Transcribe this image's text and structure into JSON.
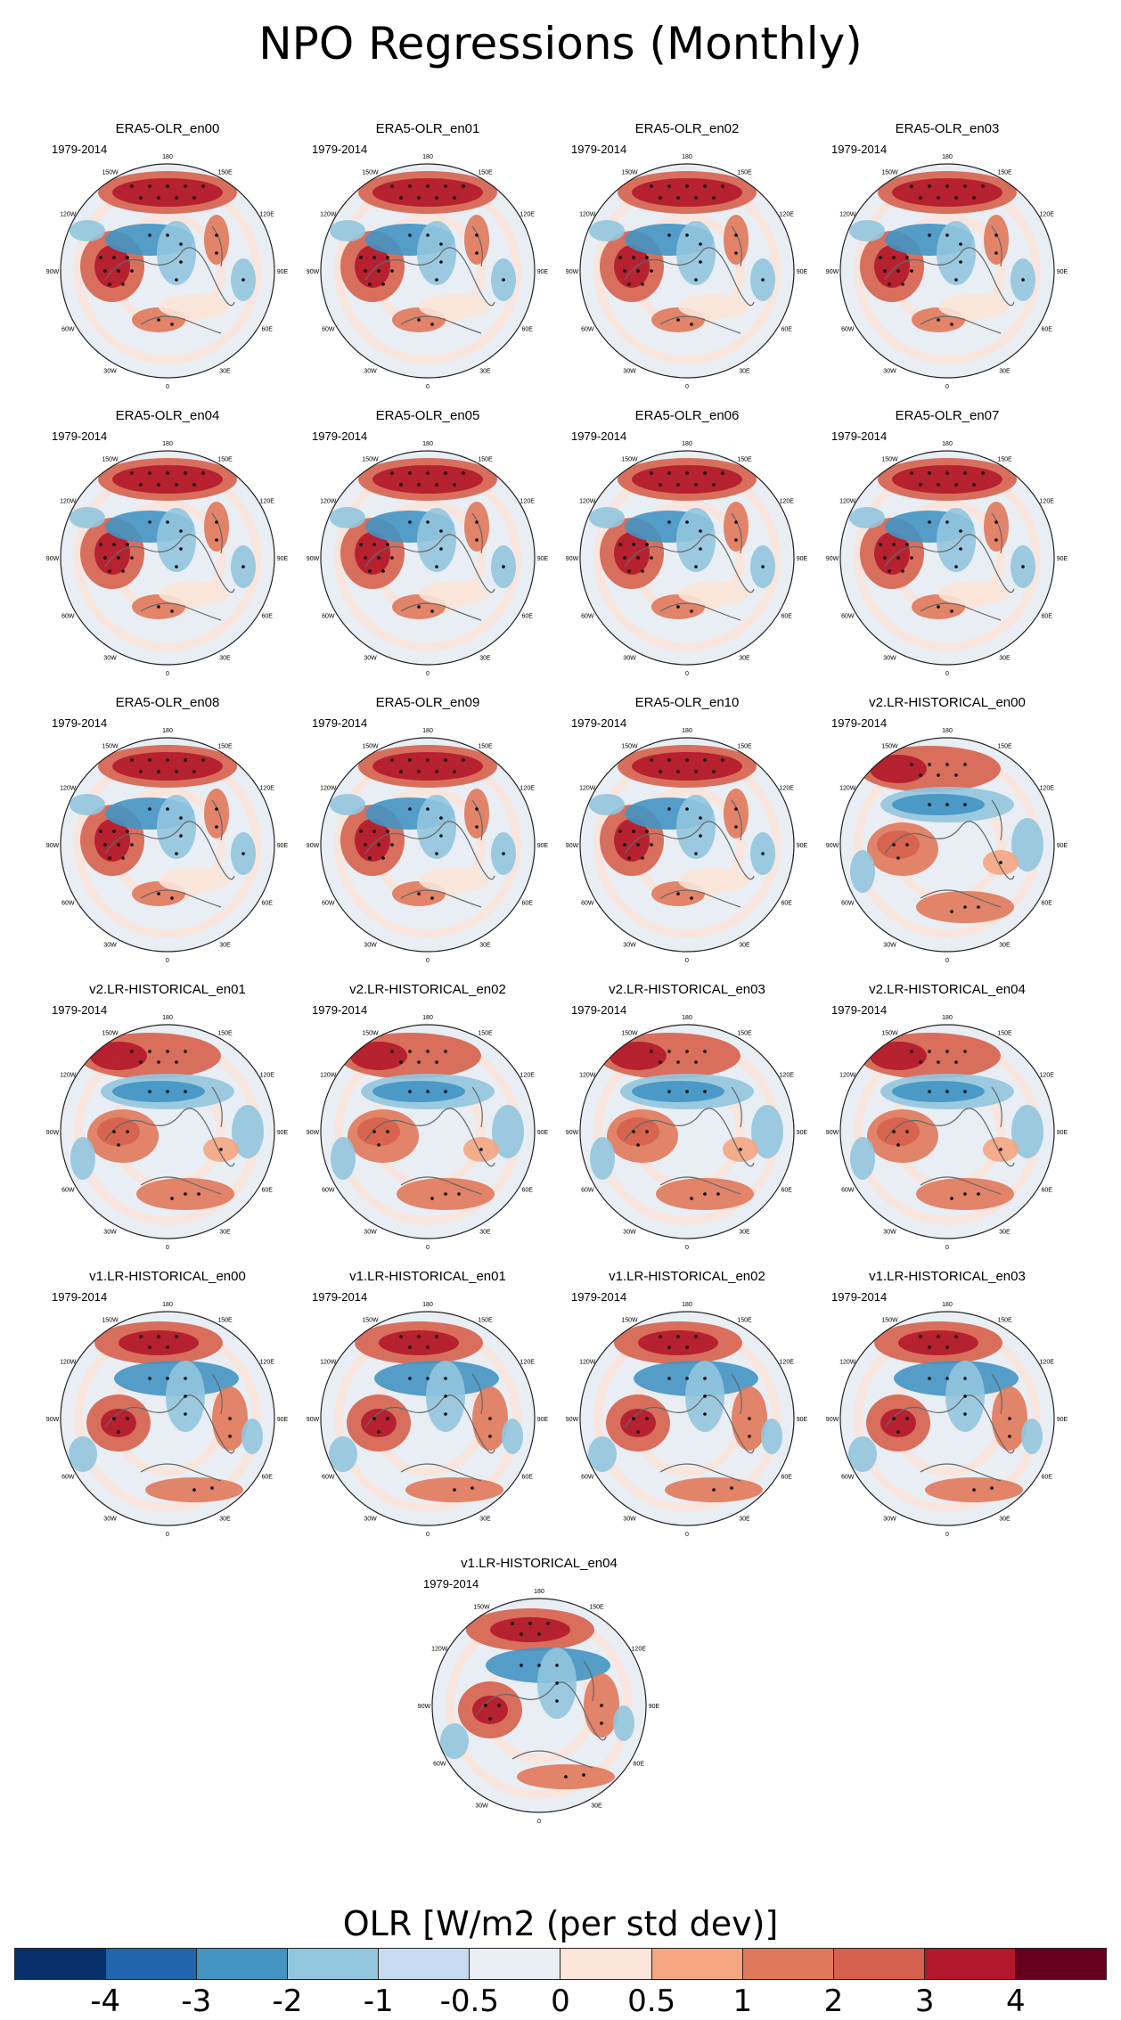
{
  "title": "NPO Regressions (Monthly)",
  "period_label": "1979-2014",
  "longitude_labels": [
    "180",
    "150E",
    "120E",
    "90E",
    "60E",
    "30E",
    "0",
    "30W",
    "60W",
    "90W",
    "120W",
    "150W"
  ],
  "panels": [
    {
      "title": "ERA5-OLR_en00",
      "variant": "era5"
    },
    {
      "title": "ERA5-OLR_en01",
      "variant": "era5"
    },
    {
      "title": "ERA5-OLR_en02",
      "variant": "era5"
    },
    {
      "title": "ERA5-OLR_en03",
      "variant": "era5"
    },
    {
      "title": "ERA5-OLR_en04",
      "variant": "era5"
    },
    {
      "title": "ERA5-OLR_en05",
      "variant": "era5"
    },
    {
      "title": "ERA5-OLR_en06",
      "variant": "era5"
    },
    {
      "title": "ERA5-OLR_en07",
      "variant": "era5"
    },
    {
      "title": "ERA5-OLR_en08",
      "variant": "era5"
    },
    {
      "title": "ERA5-OLR_en09",
      "variant": "era5"
    },
    {
      "title": "ERA5-OLR_en10",
      "variant": "era5"
    },
    {
      "title": "v2.LR-HISTORICAL_en00",
      "variant": "v2"
    },
    {
      "title": "v2.LR-HISTORICAL_en01",
      "variant": "v2"
    },
    {
      "title": "v2.LR-HISTORICAL_en02",
      "variant": "v2"
    },
    {
      "title": "v2.LR-HISTORICAL_en03",
      "variant": "v2"
    },
    {
      "title": "v2.LR-HISTORICAL_en04",
      "variant": "v2"
    },
    {
      "title": "v1.LR-HISTORICAL_en00",
      "variant": "v1"
    },
    {
      "title": "v1.LR-HISTORICAL_en01",
      "variant": "v1"
    },
    {
      "title": "v1.LR-HISTORICAL_en02",
      "variant": "v1"
    },
    {
      "title": "v1.LR-HISTORICAL_en03",
      "variant": "v1"
    },
    {
      "title": "v1.LR-HISTORICAL_en04",
      "variant": "v1"
    }
  ],
  "colorbar": {
    "title": "OLR [W/m2 (per std dev)]",
    "colors": [
      "#08306b",
      "#2166ac",
      "#4393c3",
      "#92c5de",
      "#c6dbef",
      "#e8eef4",
      "#fbe4d8",
      "#f4a582",
      "#e0785a",
      "#d6604d",
      "#b2182b",
      "#67001f"
    ],
    "tick_labels": [
      "-4",
      "-3",
      "-2",
      "-1",
      "-0.5",
      "0",
      "0.5",
      "1",
      "2",
      "3",
      "4"
    ]
  }
}
